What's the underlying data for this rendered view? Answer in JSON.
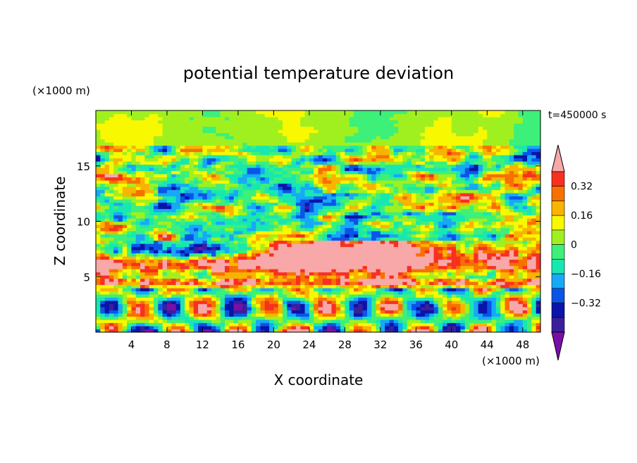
{
  "chart_data": {
    "type": "heatmap",
    "title": "potential temperature deviation",
    "time_label": "t=450000 s",
    "xlabel": "X coordinate",
    "ylabel": "Z coordinate",
    "x_unit": "(×1000 m)",
    "y_unit": "(×1000 m)",
    "xlim": [
      0,
      50
    ],
    "ylim": [
      0,
      20
    ],
    "x_ticks": [
      "4",
      "8",
      "12",
      "16",
      "20",
      "24",
      "28",
      "32",
      "36",
      "40",
      "44",
      "48"
    ],
    "y_ticks": [
      "5",
      "10",
      "15"
    ],
    "x_tick_values": [
      4,
      8,
      12,
      16,
      20,
      24,
      28,
      32,
      36,
      40,
      44,
      48
    ],
    "y_tick_values": [
      5,
      10,
      15
    ],
    "colorbar_labels": [
      "0.32",
      "0.16",
      "0",
      "−0.16",
      "−0.32"
    ],
    "colorbar_label_values": [
      0.32,
      0.16,
      0,
      -0.16,
      -0.32
    ],
    "levels": [
      -0.48,
      -0.4,
      -0.32,
      -0.24,
      -0.16,
      -0.08,
      0,
      0.08,
      0.16,
      0.24,
      0.32,
      0.4,
      0.48
    ],
    "colors": [
      "#7a0fa8",
      "#3a1f9c",
      "#0a14a8",
      "#0a55e8",
      "#18a8f8",
      "#18e8b0",
      "#3cf07a",
      "#a0f020",
      "#f8f800",
      "#f8b400",
      "#f87000",
      "#f83020",
      "#f8a8a8"
    ]
  }
}
